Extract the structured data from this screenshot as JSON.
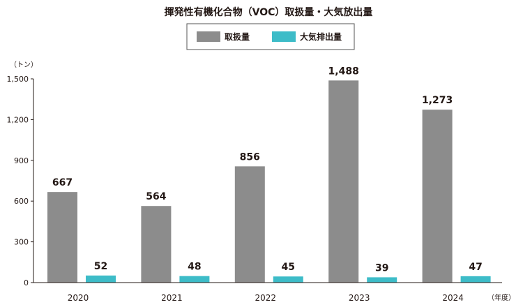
{
  "chart_data": {
    "type": "bar",
    "title": "揮発性有機化合物（VOC）取扱量・大気放出量",
    "ylabel": "（トン）",
    "xlabel": "（年度）",
    "categories": [
      "2020",
      "2021",
      "2022",
      "2023",
      "2024"
    ],
    "series": [
      {
        "name": "取扱量",
        "color": "#8c8c8c",
        "values": [
          667,
          564,
          856,
          1488,
          1273
        ],
        "labels": [
          "667",
          "564",
          "856",
          "1,488",
          "1,273"
        ]
      },
      {
        "name": "大気排出量",
        "color": "#3dbcc8",
        "values": [
          52,
          48,
          45,
          39,
          47
        ],
        "labels": [
          "52",
          "48",
          "45",
          "39",
          "47"
        ]
      }
    ],
    "ylim": [
      0,
      1500
    ],
    "yticks": [
      0,
      300,
      600,
      900,
      1200,
      1500
    ],
    "ytick_labels": [
      "0",
      "300",
      "600",
      "900",
      "1,200",
      "1,500"
    ],
    "grid": false,
    "legend": "top-center"
  }
}
